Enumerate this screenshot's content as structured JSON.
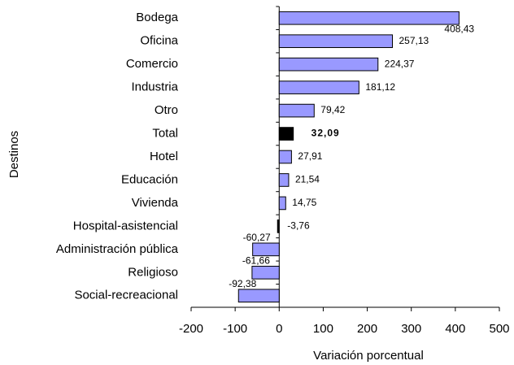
{
  "chart_data": {
    "type": "hbar",
    "ylabel": "Destinos",
    "xlabel": "Variación porcentual",
    "categories": [
      "Bodega",
      "Oficina",
      "Comercio",
      "Industria",
      "Otro",
      "Total",
      "Hotel",
      "Educación",
      "Vivienda",
      "Hospital-asistencial",
      "Administración pública",
      "Religioso",
      "Social-recreacional"
    ],
    "values": [
      408.43,
      257.13,
      224.37,
      181.12,
      79.42,
      32.09,
      27.91,
      21.54,
      14.75,
      -3.76,
      -60.27,
      -61.66,
      -92.38
    ],
    "value_labels": [
      "408,43",
      "257,13",
      "224,37",
      "181,12",
      "79,42",
      "32,09",
      "27,91",
      "21,54",
      "14,75",
      "-3,76",
      "-60,27",
      "-61,66",
      "-92,38"
    ],
    "colors": [
      "#9999ff",
      "#9999ff",
      "#9999ff",
      "#9999ff",
      "#9999ff",
      "#000000",
      "#9999ff",
      "#9999ff",
      "#9999ff",
      "#000000",
      "#9999ff",
      "#9999ff",
      "#9999ff"
    ],
    "bold_category": "Total",
    "xlim": [
      -200,
      500
    ],
    "xticks": [
      -200,
      -100,
      0,
      100,
      200,
      300,
      400,
      500
    ]
  }
}
